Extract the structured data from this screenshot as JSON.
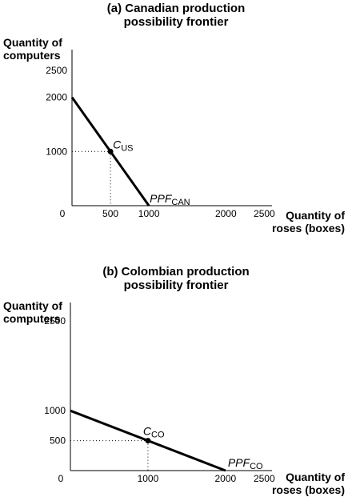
{
  "chart_data": [
    {
      "type": "line",
      "title_lines": [
        "(a) Canadian production",
        "possibility frontier"
      ],
      "ylabel_lines": [
        "Quantity of",
        "computers"
      ],
      "xlabel_lines": [
        "Quantity of",
        "roses (boxes)"
      ],
      "xlim": [
        0,
        2600
      ],
      "ylim": [
        0,
        2600
      ],
      "x_ticks": [
        {
          "value": 0,
          "label": "0"
        },
        {
          "value": 500,
          "label": "500"
        },
        {
          "value": 1000,
          "label": "1000"
        },
        {
          "value": 2000,
          "label": "2000"
        },
        {
          "value": 2500,
          "label": "2500"
        }
      ],
      "y_ticks": [
        {
          "value": 1000,
          "label": "1000"
        },
        {
          "value": 2000,
          "label": "2000"
        },
        {
          "value": 2500,
          "label": "2500"
        }
      ],
      "series": [
        {
          "label_main": "PPF",
          "label_sub": "CAN",
          "x": [
            0,
            1000
          ],
          "y": [
            2000,
            0
          ]
        }
      ],
      "points": [
        {
          "label_main": "C",
          "label_sub": "US",
          "x": 500,
          "y": 1000
        }
      ],
      "grid": false,
      "line_color": "#000000"
    },
    {
      "type": "line",
      "title_lines": [
        "(b) Colombian production",
        "possibility frontier"
      ],
      "ylabel_lines": [
        "Quantity of",
        "computers"
      ],
      "xlabel_lines": [
        "Quantity of",
        "roses (boxes)"
      ],
      "xlim": [
        0,
        2600
      ],
      "ylim": [
        0,
        2900
      ],
      "x_ticks": [
        {
          "value": 0,
          "label": "0"
        },
        {
          "value": 1000,
          "label": "1000"
        },
        {
          "value": 2000,
          "label": "2000"
        },
        {
          "value": 2500,
          "label": "2500"
        }
      ],
      "y_ticks": [
        {
          "value": 500,
          "label": "500"
        },
        {
          "value": 1000,
          "label": "1000"
        },
        {
          "value": 2500,
          "label": "2500"
        }
      ],
      "series": [
        {
          "label_main": "PPF",
          "label_sub": "CO",
          "x": [
            0,
            2000
          ],
          "y": [
            1000,
            0
          ]
        }
      ],
      "points": [
        {
          "label_main": "C",
          "label_sub": "CO",
          "x": 1000,
          "y": 500
        }
      ],
      "grid": false,
      "line_color": "#000000"
    }
  ]
}
